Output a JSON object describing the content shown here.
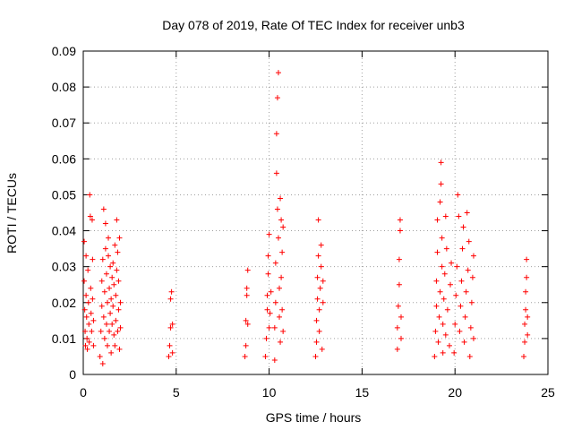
{
  "chart_data": {
    "type": "scatter",
    "title": "Day 078 of 2019, Rate Of TEC Index for receiver unb3",
    "xlabel": "GPS time / hours",
    "ylabel": "ROTI / TECUs",
    "xlim": [
      0,
      25
    ],
    "ylim": [
      0,
      0.09
    ],
    "x_ticks": [
      0,
      5,
      10,
      15,
      20,
      25
    ],
    "x_tick_labels": [
      "0",
      "5",
      "10",
      "15",
      "20",
      "25"
    ],
    "y_ticks": [
      0,
      0.01,
      0.02,
      0.03,
      0.04,
      0.05,
      0.06,
      0.07,
      0.08,
      0.09
    ],
    "y_tick_labels": [
      "0",
      "0.01",
      "0.02",
      "0.03",
      "0.04",
      "0.05",
      "0.06",
      "0.07",
      "0.08",
      "0.09"
    ],
    "grid": true,
    "marker": "+",
    "color": "#ff0000",
    "series": [
      {
        "name": "ROTI",
        "points": [
          [
            0.05,
            0.037
          ],
          [
            0.05,
            0.026
          ],
          [
            0.08,
            0.018
          ],
          [
            0.1,
            0.012
          ],
          [
            0.12,
            0.008
          ],
          [
            0.15,
            0.033
          ],
          [
            0.15,
            0.022
          ],
          [
            0.18,
            0.016
          ],
          [
            0.2,
            0.01
          ],
          [
            0.22,
            0.007
          ],
          [
            0.25,
            0.029
          ],
          [
            0.28,
            0.02
          ],
          [
            0.3,
            0.014
          ],
          [
            0.32,
            0.009
          ],
          [
            0.35,
            0.05
          ],
          [
            0.38,
            0.044
          ],
          [
            0.4,
            0.024
          ],
          [
            0.42,
            0.017
          ],
          [
            0.45,
            0.012
          ],
          [
            0.48,
            0.043
          ],
          [
            0.5,
            0.032
          ],
          [
            0.5,
            0.021
          ],
          [
            0.55,
            0.015
          ],
          [
            0.55,
            0.008
          ],
          [
            0.9,
            0.005
          ],
          [
            0.95,
            0.012
          ],
          [
            1.0,
            0.019
          ],
          [
            1.0,
            0.026
          ],
          [
            1.05,
            0.003
          ],
          [
            1.05,
            0.032
          ],
          [
            1.1,
            0.046
          ],
          [
            1.1,
            0.016
          ],
          [
            1.15,
            0.01
          ],
          [
            1.15,
            0.023
          ],
          [
            1.2,
            0.042
          ],
          [
            1.2,
            0.035
          ],
          [
            1.25,
            0.014
          ],
          [
            1.25,
            0.028
          ],
          [
            1.3,
            0.008
          ],
          [
            1.3,
            0.02
          ],
          [
            1.35,
            0.033
          ],
          [
            1.35,
            0.038
          ],
          [
            1.4,
            0.012
          ],
          [
            1.4,
            0.024
          ],
          [
            1.45,
            0.017
          ],
          [
            1.45,
            0.03
          ],
          [
            1.5,
            0.006
          ],
          [
            1.5,
            0.021
          ],
          [
            1.55,
            0.027
          ],
          [
            1.55,
            0.014
          ],
          [
            1.6,
            0.019
          ],
          [
            1.6,
            0.031
          ],
          [
            1.65,
            0.011
          ],
          [
            1.65,
            0.025
          ],
          [
            1.7,
            0.008
          ],
          [
            1.7,
            0.036
          ],
          [
            1.75,
            0.015
          ],
          [
            1.75,
            0.022
          ],
          [
            1.8,
            0.043
          ],
          [
            1.8,
            0.029
          ],
          [
            1.85,
            0.012
          ],
          [
            1.85,
            0.034
          ],
          [
            1.9,
            0.018
          ],
          [
            1.9,
            0.026
          ],
          [
            1.95,
            0.007
          ],
          [
            1.95,
            0.038
          ],
          [
            2.0,
            0.02
          ],
          [
            2.0,
            0.013
          ],
          [
            4.6,
            0.005
          ],
          [
            4.65,
            0.008
          ],
          [
            4.7,
            0.013
          ],
          [
            4.7,
            0.021
          ],
          [
            4.75,
            0.023
          ],
          [
            4.8,
            0.014
          ],
          [
            4.8,
            0.006
          ],
          [
            8.7,
            0.005
          ],
          [
            8.75,
            0.008
          ],
          [
            8.75,
            0.015
          ],
          [
            8.8,
            0.022
          ],
          [
            8.8,
            0.024
          ],
          [
            8.85,
            0.029
          ],
          [
            8.85,
            0.014
          ],
          [
            9.8,
            0.005
          ],
          [
            9.85,
            0.01
          ],
          [
            9.9,
            0.018
          ],
          [
            9.9,
            0.022
          ],
          [
            9.95,
            0.028
          ],
          [
            9.95,
            0.033
          ],
          [
            10.0,
            0.039
          ],
          [
            10.0,
            0.013
          ],
          [
            10.05,
            0.017
          ],
          [
            10.1,
            0.023
          ],
          [
            10.3,
            0.004
          ],
          [
            10.3,
            0.013
          ],
          [
            10.35,
            0.02
          ],
          [
            10.35,
            0.031
          ],
          [
            10.4,
            0.067
          ],
          [
            10.4,
            0.056
          ],
          [
            10.45,
            0.077
          ],
          [
            10.45,
            0.046
          ],
          [
            10.5,
            0.084
          ],
          [
            10.5,
            0.038
          ],
          [
            10.55,
            0.024
          ],
          [
            10.55,
            0.016
          ],
          [
            10.6,
            0.049
          ],
          [
            10.6,
            0.009
          ],
          [
            10.65,
            0.043
          ],
          [
            10.65,
            0.027
          ],
          [
            10.7,
            0.034
          ],
          [
            10.7,
            0.018
          ],
          [
            10.75,
            0.041
          ],
          [
            10.75,
            0.012
          ],
          [
            12.5,
            0.005
          ],
          [
            12.55,
            0.009
          ],
          [
            12.55,
            0.015
          ],
          [
            12.6,
            0.021
          ],
          [
            12.6,
            0.027
          ],
          [
            12.65,
            0.033
          ],
          [
            12.65,
            0.043
          ],
          [
            12.7,
            0.012
          ],
          [
            12.7,
            0.018
          ],
          [
            12.75,
            0.024
          ],
          [
            12.8,
            0.03
          ],
          [
            12.8,
            0.036
          ],
          [
            12.85,
            0.007
          ],
          [
            12.9,
            0.02
          ],
          [
            12.9,
            0.026
          ],
          [
            16.9,
            0.007
          ],
          [
            16.9,
            0.013
          ],
          [
            16.95,
            0.019
          ],
          [
            17.0,
            0.025
          ],
          [
            17.0,
            0.032
          ],
          [
            17.05,
            0.04
          ],
          [
            17.05,
            0.043
          ],
          [
            17.1,
            0.01
          ],
          [
            17.1,
            0.016
          ],
          [
            18.9,
            0.005
          ],
          [
            18.95,
            0.012
          ],
          [
            19.0,
            0.019
          ],
          [
            19.0,
            0.026
          ],
          [
            19.05,
            0.034
          ],
          [
            19.05,
            0.043
          ],
          [
            19.1,
            0.009
          ],
          [
            19.15,
            0.016
          ],
          [
            19.2,
            0.023
          ],
          [
            19.2,
            0.048
          ],
          [
            19.25,
            0.059
          ],
          [
            19.25,
            0.053
          ],
          [
            19.3,
            0.03
          ],
          [
            19.3,
            0.038
          ],
          [
            19.35,
            0.006
          ],
          [
            19.35,
            0.014
          ],
          [
            19.4,
            0.021
          ],
          [
            19.45,
            0.028
          ],
          [
            19.5,
            0.044
          ],
          [
            19.5,
            0.011
          ],
          [
            19.55,
            0.035
          ],
          [
            19.6,
            0.018
          ],
          [
            19.7,
            0.008
          ],
          [
            19.75,
            0.025
          ],
          [
            19.8,
            0.031
          ],
          [
            19.95,
            0.006
          ],
          [
            20.0,
            0.014
          ],
          [
            20.05,
            0.022
          ],
          [
            20.1,
            0.03
          ],
          [
            20.15,
            0.05
          ],
          [
            20.2,
            0.044
          ],
          [
            20.25,
            0.012
          ],
          [
            20.3,
            0.019
          ],
          [
            20.35,
            0.026
          ],
          [
            20.4,
            0.035
          ],
          [
            20.45,
            0.041
          ],
          [
            20.5,
            0.009
          ],
          [
            20.55,
            0.016
          ],
          [
            20.6,
            0.023
          ],
          [
            20.65,
            0.045
          ],
          [
            20.7,
            0.029
          ],
          [
            20.75,
            0.037
          ],
          [
            20.8,
            0.005
          ],
          [
            20.85,
            0.013
          ],
          [
            20.9,
            0.02
          ],
          [
            20.95,
            0.027
          ],
          [
            21.0,
            0.033
          ],
          [
            21.0,
            0.01
          ],
          [
            23.7,
            0.005
          ],
          [
            23.75,
            0.009
          ],
          [
            23.75,
            0.014
          ],
          [
            23.8,
            0.018
          ],
          [
            23.8,
            0.023
          ],
          [
            23.85,
            0.027
          ],
          [
            23.85,
            0.032
          ],
          [
            23.9,
            0.011
          ],
          [
            23.9,
            0.016
          ]
        ]
      }
    ]
  }
}
